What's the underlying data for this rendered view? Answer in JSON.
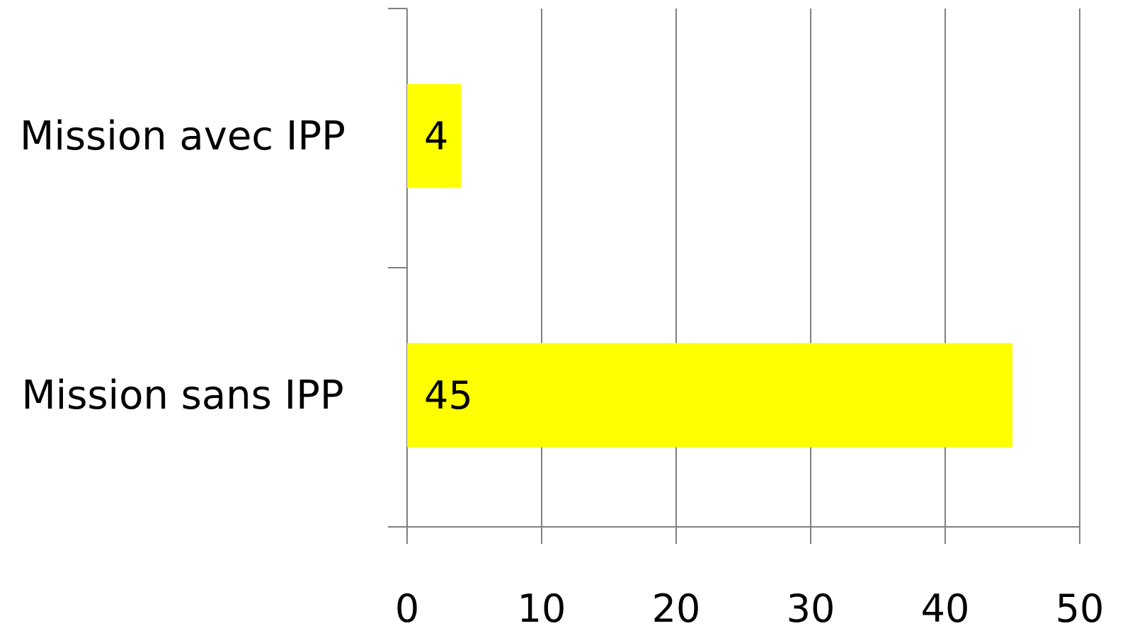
{
  "chart_data": {
    "type": "bar",
    "orientation": "horizontal",
    "categories": [
      "Mission avec IPP",
      "Mission sans IPP"
    ],
    "values": [
      4,
      45
    ],
    "data_labels": [
      "4",
      "45"
    ],
    "title": "",
    "xlabel": "",
    "ylabel": "",
    "xlim": [
      0,
      50
    ],
    "x_ticks": [
      0,
      10,
      20,
      30,
      40,
      50
    ],
    "x_tick_labels": [
      "0",
      "10",
      "20",
      "30",
      "40",
      "50"
    ],
    "grid": "vertical",
    "legend": "none",
    "bar_color": "#FFFF00",
    "grid_color": "#808080"
  }
}
